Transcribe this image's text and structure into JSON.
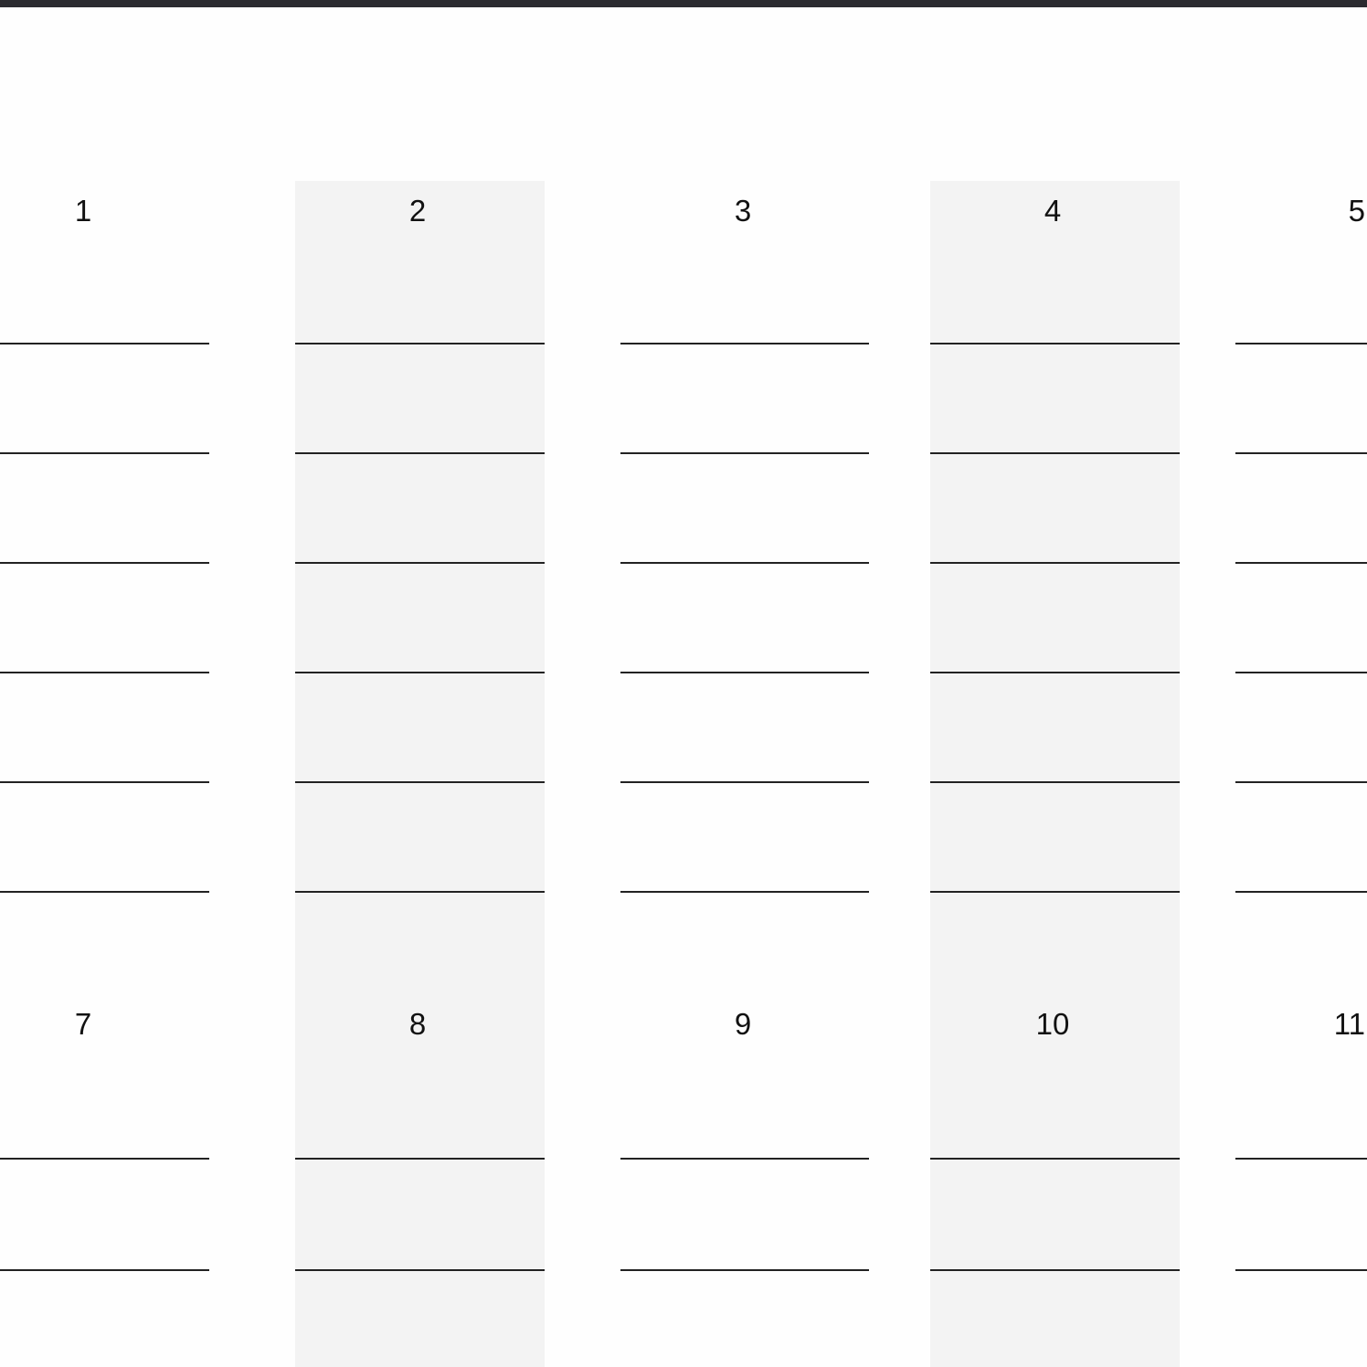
{
  "colors": {
    "top_bar": "#2b2b30",
    "shaded_column": "#f3f3f3",
    "rule": "#222222"
  },
  "rows": [
    {
      "labels": [
        "1",
        "2",
        "3",
        "4",
        "5"
      ],
      "blank_lines_per_cell": 6
    },
    {
      "labels": [
        "7",
        "8",
        "9",
        "10",
        "11"
      ],
      "blank_lines_per_cell": 2
    }
  ],
  "shaded_columns": [
    2,
    4
  ]
}
